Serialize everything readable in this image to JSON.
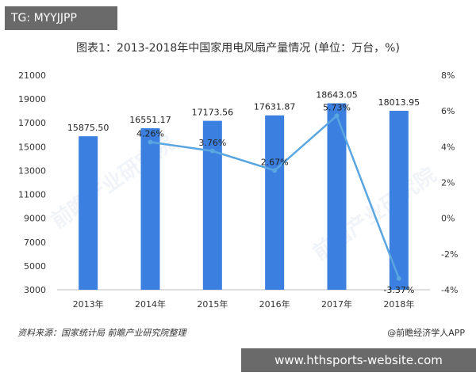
{
  "tag_label": "TG: MYYJJPP",
  "footer_url": "www.hthsports-website.com",
  "source_text": "资料来源：国家统计局 前瞻产业研究院整理",
  "brand_text": "@前瞻经济学人APP",
  "watermark_text": "前瞻产业研究院",
  "colors": {
    "bar": "#3b7fe0",
    "line": "#5aa6e0",
    "footer_bg": "#6a6a6a"
  },
  "chart_data": {
    "type": "bar",
    "title": "图表1：2013-2018年中国家用电风扇产量情况 (单位：万台，%)",
    "categories": [
      "2013年",
      "2014年",
      "2015年",
      "2016年",
      "2017年",
      "2018年"
    ],
    "series": [
      {
        "type": "bar",
        "axis": "left",
        "values": [
          15875.5,
          16551.17,
          17173.56,
          17631.87,
          18643.05,
          18013.95
        ],
        "labels": [
          "15875.50",
          "16551.17",
          "17173.56",
          "17631.87",
          "18643.05",
          "18013.95"
        ]
      },
      {
        "type": "line",
        "axis": "right",
        "values": [
          null,
          4.26,
          3.76,
          2.67,
          5.73,
          -3.37
        ],
        "labels": [
          "",
          "4.26%",
          "3.76%",
          "2.67%",
          "5.73%",
          "-3.37%"
        ]
      }
    ],
    "yleft": {
      "min": 3000,
      "max": 21000,
      "ticks": [
        3000,
        5000,
        7000,
        9000,
        11000,
        13000,
        15000,
        17000,
        19000,
        21000
      ],
      "tick_labels": [
        "3000",
        "5000",
        "7000",
        "9000",
        "11000",
        "13000",
        "15000",
        "17000",
        "19000",
        "21000"
      ]
    },
    "yright": {
      "min": -4,
      "max": 8,
      "ticks": [
        -4,
        -2,
        0,
        2,
        4,
        6,
        8
      ],
      "tick_labels": [
        "-4%",
        "-2%",
        "0%",
        "2%",
        "4%",
        "6%",
        "8%"
      ]
    },
    "grid": false,
    "legend": "none"
  }
}
